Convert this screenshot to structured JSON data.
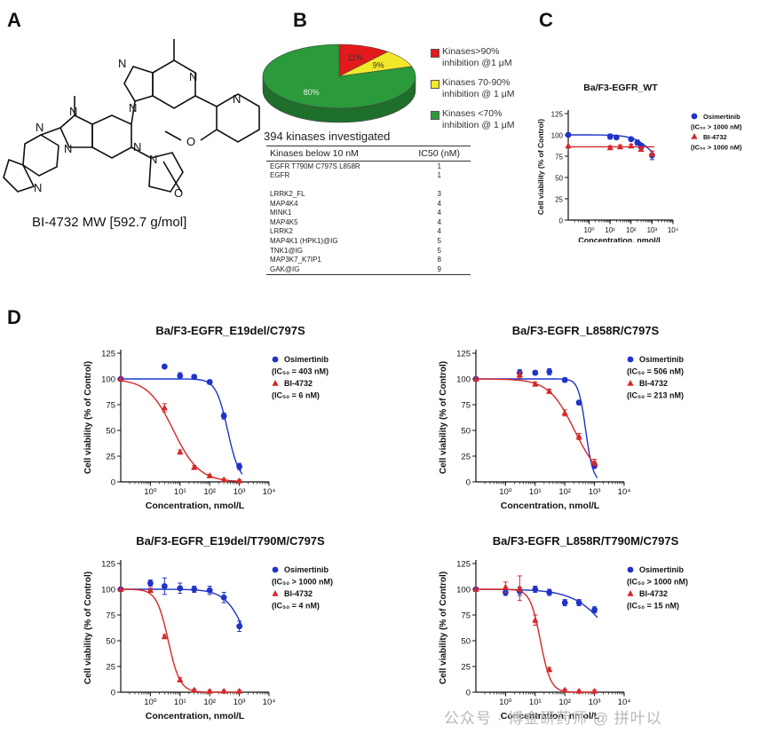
{
  "panels": {
    "a": "A",
    "b": "B",
    "c": "C",
    "d": "D"
  },
  "chemistry": {
    "caption": "BI-4732 MW [592.7 g/mol]",
    "atom_labels": [
      "N",
      "N",
      "N",
      "N",
      "N",
      "N",
      "N",
      "N",
      "N",
      "N",
      "O",
      "O"
    ]
  },
  "pie": {
    "slices": [
      {
        "label": "Kinases>90%",
        "label2": "inhibition @1 μM",
        "percent": 11,
        "text": "11%",
        "color": "#e31a1c"
      },
      {
        "label": "Kinases 70-90%",
        "label2": "inhibition @ 1 μM",
        "percent": 9,
        "text": "9%",
        "color": "#f2e82a"
      },
      {
        "label": "Kinases <70%",
        "label2": "inhibition @ 1 μM",
        "percent": 80,
        "text": "80%",
        "color": "#2a9a3a"
      }
    ]
  },
  "kinase_table": {
    "title": "394 kinases investigated",
    "header_name": "Kinases below 10 nM",
    "header_ic50": "IC50 (nM)",
    "rows": [
      {
        "name": "EGFR T790M C797S L858R",
        "ic50": "1"
      },
      {
        "name": "EGFR",
        "ic50": "1"
      },
      {
        "name": "LRRK2_FL",
        "ic50": "3"
      },
      {
        "name": "MAP4K4",
        "ic50": "4"
      },
      {
        "name": "MINK1",
        "ic50": "4"
      },
      {
        "name": "MAP4K5",
        "ic50": "4"
      },
      {
        "name": "LRRK2",
        "ic50": "4"
      },
      {
        "name": "MAP4K1 (HPK1)@IG",
        "ic50": "5"
      },
      {
        "name": "TNK1@IG",
        "ic50": "5"
      },
      {
        "name": "MAP3K7_K7IP1",
        "ic50": "8"
      },
      {
        "name": "GAK@IG",
        "ic50": "9"
      }
    ]
  },
  "chart_data": [
    {
      "type": "scatter",
      "title": "Ba/F3-EGFR_WT",
      "xlabel": "Concentration, nmol/L",
      "ylabel": "Cell viability (% of Control)",
      "xscale": "log",
      "xlim": [
        0.1,
        10000
      ],
      "ylim": [
        0,
        125
      ],
      "yticks": [
        "0",
        "25",
        "50",
        "75",
        "100",
        "125"
      ],
      "xticks": [
        "10⁰",
        "10¹",
        "10²",
        "10³",
        "10⁴"
      ],
      "legend_position": "right",
      "series": [
        {
          "name": "Osimertinib",
          "ic50_label": "(IC₅₀ > 1000 nM)",
          "color": "#1f33c8",
          "marker": "circle",
          "x": [
            0.1,
            10,
            20,
            100,
            200,
            300,
            1000
          ],
          "y": [
            100,
            98,
            97,
            95,
            91,
            86,
            76
          ],
          "err": [
            0,
            3,
            2,
            2,
            3,
            4,
            5
          ],
          "fit": {
            "bottom": 60,
            "top": 100,
            "logec50": 3.0,
            "hill": 1
          }
        },
        {
          "name": "BI-4732",
          "ic50_label": "(IC₅₀ > 1000 nM)",
          "color": "#d62728",
          "marker": "triangle",
          "x": [
            0.1,
            10,
            30,
            100,
            300,
            1000
          ],
          "y": [
            87,
            85,
            86,
            87,
            83,
            78
          ],
          "err": [
            0,
            2,
            2,
            2,
            2,
            3
          ],
          "fit": {
            "bottom": 86,
            "top": 86,
            "logec50": 2.0,
            "hill": 1
          }
        }
      ]
    },
    {
      "type": "scatter",
      "title": "Ba/F3-EGFR_E19del/C797S",
      "xlabel": "Concentration, nmol/L",
      "ylabel": "Cell viability (% of Control)",
      "xscale": "log",
      "xlim": [
        0.1,
        10000
      ],
      "ylim": [
        0,
        125
      ],
      "yticks": [
        "0",
        "25",
        "50",
        "75",
        "100",
        "125"
      ],
      "xticks": [
        "10⁰",
        "10¹",
        "10²",
        "10³",
        "10⁴"
      ],
      "legend_position": "right",
      "series": [
        {
          "name": "Osimertinib",
          "ic50_label": "(IC₅₀ = 403 nM)",
          "color": "#1f33c8",
          "marker": "circle",
          "x": [
            0.1,
            3,
            10,
            30,
            100,
            300,
            1000
          ],
          "y": [
            100,
            112,
            103,
            102,
            97,
            64,
            15
          ],
          "err": [
            0,
            0,
            3,
            2,
            2,
            3,
            3
          ],
          "fit": {
            "bottom": 0,
            "top": 100,
            "logec50": 2.605,
            "hill": 2.2
          }
        },
        {
          "name": "BI-4732",
          "ic50_label": "(IC₅₀ = 6 nM)",
          "color": "#d62728",
          "marker": "triangle",
          "x": [
            0.1,
            3,
            10,
            30,
            100,
            300,
            1000
          ],
          "y": [
            100,
            72,
            29,
            14,
            6,
            2,
            1
          ],
          "err": [
            0,
            4,
            2,
            2,
            1,
            1,
            1
          ],
          "fit": {
            "bottom": 0,
            "top": 100,
            "logec50": 0.778,
            "hill": 1.0
          }
        }
      ]
    },
    {
      "type": "scatter",
      "title": "Ba/F3-EGFR_L858R/C797S",
      "xlabel": "Concentration, nmol/L",
      "ylabel": "Cell viability (% of Control)",
      "xscale": "log",
      "xlim": [
        0.1,
        10000
      ],
      "ylim": [
        0,
        125
      ],
      "yticks": [
        "0",
        "25",
        "50",
        "75",
        "100",
        "125"
      ],
      "xticks": [
        "10⁰",
        "10¹",
        "10²",
        "10³",
        "10⁴"
      ],
      "legend_position": "right",
      "series": [
        {
          "name": "Osimertinib",
          "ic50_label": "(IC₅₀ = 506 nM)",
          "color": "#1f33c8",
          "marker": "circle",
          "x": [
            0.1,
            3,
            10,
            30,
            100,
            300,
            1000
          ],
          "y": [
            100,
            106,
            106,
            107,
            99,
            77,
            16
          ],
          "err": [
            0,
            3,
            2,
            3,
            2,
            2,
            3
          ],
          "fit": {
            "bottom": 0,
            "top": 100,
            "logec50": 2.704,
            "hill": 3.5
          }
        },
        {
          "name": "BI-4732",
          "ic50_label": "(IC₅₀ = 213 nM)",
          "color": "#d62728",
          "marker": "triangle",
          "x": [
            0.1,
            3,
            10,
            30,
            100,
            300,
            1000
          ],
          "y": [
            100,
            104,
            95,
            88,
            67,
            44,
            19
          ],
          "err": [
            0,
            3,
            2,
            2,
            3,
            3,
            3
          ],
          "fit": {
            "bottom": 0,
            "top": 100,
            "logec50": 2.328,
            "hill": 1.0
          }
        }
      ]
    },
    {
      "type": "scatter",
      "title": "Ba/F3-EGFR_E19del/T790M/C797S",
      "xlabel": "Concentration, nmol/L",
      "ylabel": "Cell viability (% of Control)",
      "xscale": "log",
      "xlim": [
        0.1,
        10000
      ],
      "ylim": [
        0,
        125
      ],
      "yticks": [
        "0",
        "25",
        "50",
        "75",
        "100",
        "125"
      ],
      "xticks": [
        "10⁰",
        "10¹",
        "10²",
        "10³",
        "10⁴"
      ],
      "legend_position": "right",
      "series": [
        {
          "name": "Osimertinib",
          "ic50_label": "(IC₅₀ > 1000 nM)",
          "color": "#1f33c8",
          "marker": "circle",
          "x": [
            0.1,
            1,
            3,
            10,
            30,
            100,
            300,
            1000
          ],
          "y": [
            100,
            106,
            103,
            101,
            100,
            99,
            92,
            64
          ],
          "err": [
            0,
            3,
            8,
            5,
            3,
            4,
            5,
            5
          ],
          "fit": {
            "bottom": 0,
            "top": 100,
            "logec50": 3.3,
            "hill": 1.2
          }
        },
        {
          "name": "BI-4732",
          "ic50_label": "(IC₅₀ = 4 nM)",
          "color": "#d62728",
          "marker": "triangle",
          "x": [
            0.1,
            1,
            3,
            10,
            30,
            100,
            300,
            1000
          ],
          "y": [
            100,
            99,
            54,
            12,
            2,
            1,
            1,
            1
          ],
          "err": [
            0,
            2,
            2,
            2,
            1,
            1,
            1,
            1
          ],
          "fit": {
            "bottom": 0,
            "top": 100,
            "logec50": 0.602,
            "hill": 2.2
          }
        }
      ]
    },
    {
      "type": "scatter",
      "title": "Ba/F3-EGFR_L858R/T790M/C797S",
      "xlabel": "Concentration, nmol/L",
      "ylabel": "Cell viability (% of Control)",
      "xscale": "log",
      "xlim": [
        0.1,
        10000
      ],
      "ylim": [
        0,
        125
      ],
      "yticks": [
        "0",
        "25",
        "50",
        "75",
        "100",
        "125"
      ],
      "xticks": [
        "10⁰",
        "10¹",
        "10²",
        "10³",
        "10⁴"
      ],
      "legend_position": "right",
      "series": [
        {
          "name": "Osimertinib",
          "ic50_label": "(IC₅₀ > 1000 nM)",
          "color": "#1f33c8",
          "marker": "circle",
          "x": [
            0.1,
            1,
            3,
            10,
            30,
            100,
            300,
            1000
          ],
          "y": [
            100,
            97,
            98,
            100,
            97,
            87,
            87,
            80
          ],
          "err": [
            0,
            3,
            4,
            3,
            3,
            3,
            3,
            3
          ],
          "fit": {
            "bottom": 0,
            "top": 100,
            "logec50": 3.7,
            "hill": 0.7
          }
        },
        {
          "name": "BI-4732",
          "ic50_label": "(IC₅₀ = 15 nM)",
          "color": "#d62728",
          "marker": "triangle",
          "x": [
            0.1,
            1,
            3,
            10,
            30,
            100,
            300,
            1000
          ],
          "y": [
            100,
            102,
            101,
            70,
            22,
            2,
            1,
            1
          ],
          "err": [
            0,
            5,
            12,
            5,
            2,
            1,
            1,
            1
          ],
          "fit": {
            "bottom": 0,
            "top": 100,
            "logec50": 1.176,
            "hill": 2.5
          }
        }
      ]
    }
  ],
  "watermark": "公众号 · 博金研药师 @ 拼叶以"
}
